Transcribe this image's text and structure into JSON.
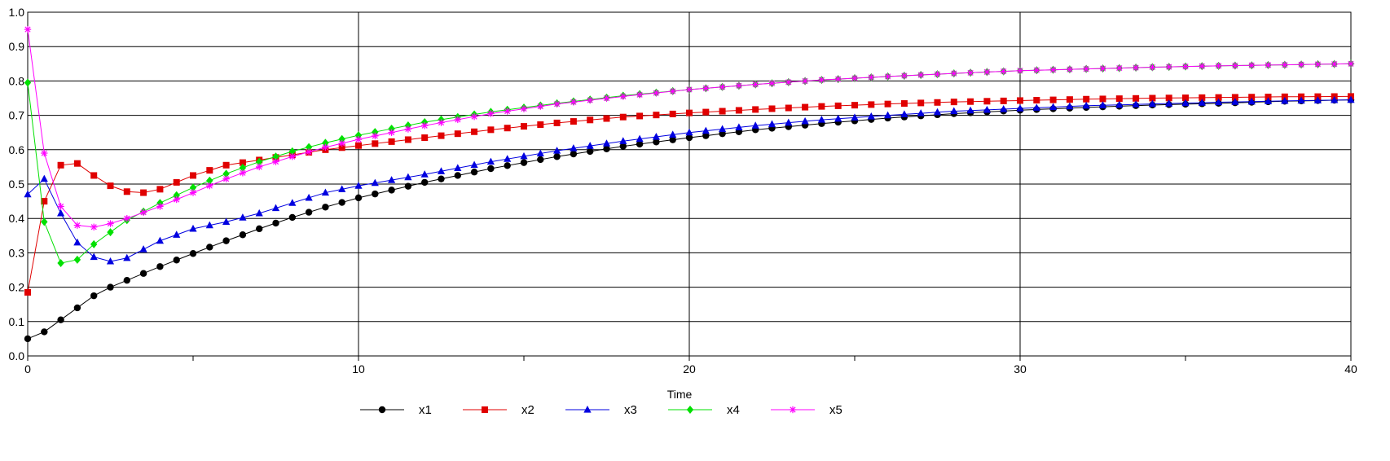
{
  "chart_data": {
    "type": "line",
    "title": "",
    "xlabel": "Time",
    "ylabel": "",
    "xlim": [
      0,
      40
    ],
    "ylim": [
      0,
      1.0
    ],
    "x_ticks": [
      0,
      10,
      20,
      30,
      40
    ],
    "x_tick_labels": [
      "0",
      "10",
      "20",
      "30",
      "40"
    ],
    "y_ticks": [
      0,
      0.1,
      0.2,
      0.3,
      0.4,
      0.5,
      0.6,
      0.7,
      0.8,
      0.9,
      1.0
    ],
    "y_tick_labels": [
      "0.0",
      "0.1",
      "0.2",
      "0.3",
      "0.4",
      "0.5",
      "0.6",
      "0.7",
      "0.8",
      "0.9",
      "1.0"
    ],
    "grid": true,
    "legend_position": "bottom",
    "sample_step": 0.5,
    "series": [
      {
        "name": "x1",
        "color": "#000000",
        "marker": "circle",
        "anchors": [
          [
            0,
            0.05
          ],
          [
            0.5,
            0.07
          ],
          [
            1,
            0.105
          ],
          [
            1.5,
            0.14
          ],
          [
            2,
            0.175
          ],
          [
            2.5,
            0.2
          ],
          [
            3,
            0.22
          ],
          [
            4,
            0.26
          ],
          [
            5,
            0.298
          ],
          [
            6,
            0.335
          ],
          [
            7,
            0.37
          ],
          [
            8,
            0.403
          ],
          [
            9,
            0.433
          ],
          [
            10,
            0.46
          ],
          [
            12,
            0.505
          ],
          [
            14,
            0.545
          ],
          [
            16,
            0.58
          ],
          [
            18,
            0.61
          ],
          [
            20,
            0.635
          ],
          [
            22,
            0.658
          ],
          [
            24,
            0.676
          ],
          [
            26,
            0.692
          ],
          [
            28,
            0.705
          ],
          [
            30,
            0.715
          ],
          [
            32,
            0.723
          ],
          [
            34,
            0.73
          ],
          [
            36,
            0.735
          ],
          [
            38,
            0.741
          ],
          [
            40,
            0.745
          ]
        ]
      },
      {
        "name": "x2",
        "color": "#e00000",
        "marker": "square",
        "anchors": [
          [
            0,
            0.185
          ],
          [
            0.5,
            0.45
          ],
          [
            1,
            0.555
          ],
          [
            1.5,
            0.56
          ],
          [
            2,
            0.525
          ],
          [
            2.5,
            0.495
          ],
          [
            3,
            0.478
          ],
          [
            3.5,
            0.475
          ],
          [
            4,
            0.485
          ],
          [
            4.5,
            0.505
          ],
          [
            5,
            0.525
          ],
          [
            6,
            0.555
          ],
          [
            7,
            0.57
          ],
          [
            8,
            0.585
          ],
          [
            9,
            0.6
          ],
          [
            10,
            0.612
          ],
          [
            12,
            0.635
          ],
          [
            14,
            0.658
          ],
          [
            16,
            0.678
          ],
          [
            18,
            0.695
          ],
          [
            20,
            0.707
          ],
          [
            22,
            0.717
          ],
          [
            24,
            0.726
          ],
          [
            26,
            0.733
          ],
          [
            28,
            0.739
          ],
          [
            30,
            0.743
          ],
          [
            32,
            0.747
          ],
          [
            34,
            0.75
          ],
          [
            36,
            0.752
          ],
          [
            38,
            0.754
          ],
          [
            40,
            0.755
          ]
        ]
      },
      {
        "name": "x3",
        "color": "#0000e0",
        "marker": "triangle",
        "anchors": [
          [
            0,
            0.47
          ],
          [
            0.5,
            0.515
          ],
          [
            1,
            0.415
          ],
          [
            1.5,
            0.33
          ],
          [
            2,
            0.288
          ],
          [
            2.5,
            0.275
          ],
          [
            3,
            0.285
          ],
          [
            3.5,
            0.31
          ],
          [
            4,
            0.335
          ],
          [
            5,
            0.37
          ],
          [
            6,
            0.39
          ],
          [
            7,
            0.415
          ],
          [
            8,
            0.445
          ],
          [
            9,
            0.475
          ],
          [
            10,
            0.495
          ],
          [
            12,
            0.528
          ],
          [
            14,
            0.565
          ],
          [
            16,
            0.597
          ],
          [
            18,
            0.625
          ],
          [
            20,
            0.65
          ],
          [
            22,
            0.67
          ],
          [
            24,
            0.687
          ],
          [
            26,
            0.7
          ],
          [
            28,
            0.712
          ],
          [
            30,
            0.72
          ],
          [
            32,
            0.728
          ],
          [
            34,
            0.733
          ],
          [
            36,
            0.738
          ],
          [
            38,
            0.742
          ],
          [
            40,
            0.745
          ]
        ]
      },
      {
        "name": "x4",
        "color": "#00e000",
        "marker": "diamond",
        "anchors": [
          [
            0,
            0.795
          ],
          [
            0.5,
            0.39
          ],
          [
            1,
            0.27
          ],
          [
            1.5,
            0.28
          ],
          [
            2,
            0.325
          ],
          [
            2.5,
            0.36
          ],
          [
            3,
            0.395
          ],
          [
            4,
            0.445
          ],
          [
            5,
            0.49
          ],
          [
            6,
            0.53
          ],
          [
            7,
            0.565
          ],
          [
            8,
            0.595
          ],
          [
            9,
            0.62
          ],
          [
            10,
            0.642
          ],
          [
            12,
            0.68
          ],
          [
            14,
            0.71
          ],
          [
            16,
            0.735
          ],
          [
            18,
            0.757
          ],
          [
            20,
            0.775
          ],
          [
            22,
            0.79
          ],
          [
            24,
            0.803
          ],
          [
            26,
            0.813
          ],
          [
            28,
            0.822
          ],
          [
            30,
            0.83
          ],
          [
            32,
            0.835
          ],
          [
            34,
            0.84
          ],
          [
            36,
            0.844
          ],
          [
            38,
            0.847
          ],
          [
            40,
            0.85
          ]
        ]
      },
      {
        "name": "x5",
        "color": "#ff00ff",
        "marker": "star",
        "anchors": [
          [
            0,
            0.95
          ],
          [
            0.5,
            0.59
          ],
          [
            1,
            0.435
          ],
          [
            1.5,
            0.38
          ],
          [
            2,
            0.375
          ],
          [
            2.5,
            0.385
          ],
          [
            3,
            0.4
          ],
          [
            4,
            0.435
          ],
          [
            5,
            0.475
          ],
          [
            6,
            0.515
          ],
          [
            7,
            0.55
          ],
          [
            8,
            0.58
          ],
          [
            9,
            0.607
          ],
          [
            10,
            0.63
          ],
          [
            12,
            0.67
          ],
          [
            14,
            0.705
          ],
          [
            16,
            0.733
          ],
          [
            18,
            0.755
          ],
          [
            20,
            0.775
          ],
          [
            22,
            0.79
          ],
          [
            24,
            0.803
          ],
          [
            26,
            0.813
          ],
          [
            28,
            0.822
          ],
          [
            30,
            0.83
          ],
          [
            32,
            0.835
          ],
          [
            34,
            0.84
          ],
          [
            36,
            0.844
          ],
          [
            38,
            0.847
          ],
          [
            40,
            0.85
          ]
        ]
      }
    ]
  }
}
